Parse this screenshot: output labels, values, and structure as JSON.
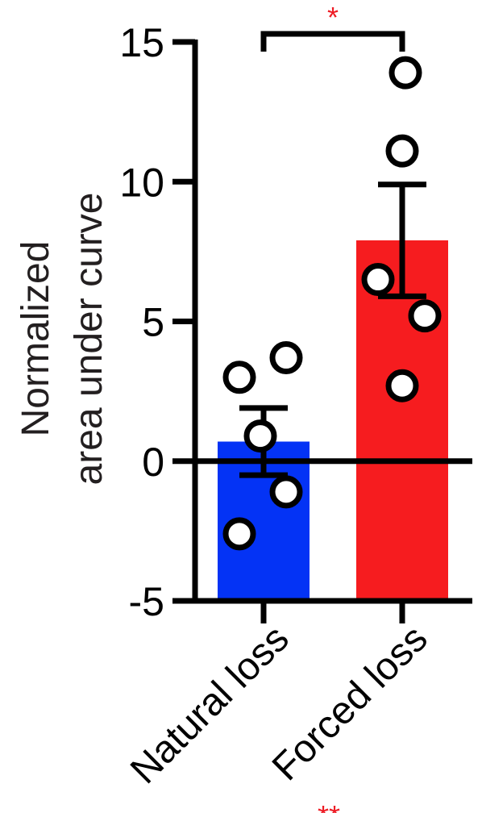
{
  "chart_data": {
    "type": "bar",
    "title": "",
    "ylabel": [
      "Normalized",
      "area under curve"
    ],
    "xlabel": "",
    "ylim": [
      -5,
      15
    ],
    "yticks": [
      -5,
      0,
      5,
      10,
      15
    ],
    "yticklabels": [
      "-5",
      "0",
      "5",
      "10",
      "15"
    ],
    "categories": [
      "Natural loss",
      "Forced loss"
    ],
    "bars": [
      {
        "mean": 0.7,
        "sem_upper": 1.9,
        "sem_lower": -0.5,
        "color": "#0433f5",
        "points": [
          3.0,
          3.7,
          0.9,
          -1.1,
          -2.6
        ]
      },
      {
        "mean": 7.9,
        "sem_upper": 9.9,
        "sem_lower": 5.9,
        "color": "#f61c1f",
        "points": [
          13.9,
          11.1,
          6.5,
          5.2,
          2.7
        ]
      }
    ],
    "significance": [
      {
        "from": 0,
        "to": 1,
        "label": "*",
        "color": "#ee1c25"
      }
    ],
    "extra_annotation": {
      "label": "**",
      "color": "#ee1c25"
    }
  }
}
